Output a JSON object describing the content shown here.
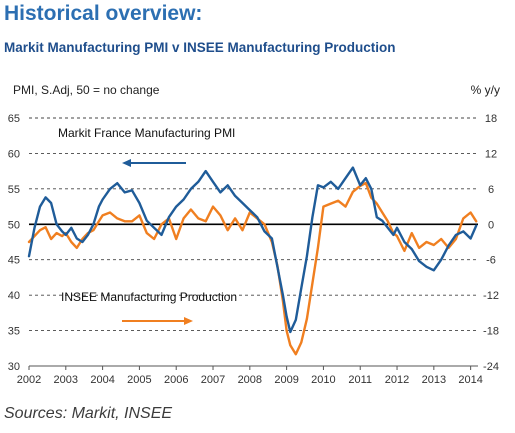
{
  "header": {
    "title": "Historical overview:",
    "subtitle": "Markit Manufacturing PMI v INSEE Manufacturing Production"
  },
  "footer": {
    "source": "Sources: Markit, INSEE"
  },
  "chart_data": {
    "type": "line",
    "left_axis_label": "PMI, S.Adj, 50 = no change",
    "right_axis_label": "% y/y",
    "left_ylim": [
      30,
      65
    ],
    "left_ticks": [
      30,
      35,
      40,
      45,
      50,
      55,
      60,
      65
    ],
    "right_ylim": [
      -24,
      18
    ],
    "right_ticks": [
      -24,
      -18,
      -12,
      -6,
      0,
      6,
      12,
      18
    ],
    "xlim": [
      2002,
      2014.2
    ],
    "x_ticks": [
      "2002",
      "2003",
      "2004",
      "2005",
      "2006",
      "2007",
      "2008",
      "2009",
      "2010",
      "2011",
      "2012",
      "2013",
      "2014"
    ],
    "reference_line": 50,
    "grid": "horizontal dashed",
    "colors": {
      "pmi": "#1f5c99",
      "production": "#f07f20"
    },
    "annotations": {
      "pmi": "Markit France Manufacturing PMI",
      "production": "INSEE Manufacturing Production"
    },
    "series": [
      {
        "key": "pmi",
        "axis": "left",
        "x": [
          2002.0,
          2002.15,
          2002.3,
          2002.45,
          2002.6,
          2002.75,
          2002.9,
          2003.0,
          2003.15,
          2003.3,
          2003.45,
          2003.6,
          2003.75,
          2003.9,
          2004.0,
          2004.2,
          2004.4,
          2004.6,
          2004.8,
          2005.0,
          2005.2,
          2005.4,
          2005.6,
          2005.8,
          2006.0,
          2006.2,
          2006.4,
          2006.6,
          2006.8,
          2007.0,
          2007.2,
          2007.4,
          2007.6,
          2007.8,
          2008.0,
          2008.2,
          2008.4,
          2008.6,
          2008.75,
          2008.9,
          2009.0,
          2009.1,
          2009.25,
          2009.4,
          2009.55,
          2009.7,
          2009.85,
          2010.0,
          2010.2,
          2010.4,
          2010.6,
          2010.8,
          2011.0,
          2011.15,
          2011.3,
          2011.45,
          2011.6,
          2011.75,
          2011.9,
          2012.0,
          2012.2,
          2012.4,
          2012.6,
          2012.8,
          2013.0,
          2013.2,
          2013.4,
          2013.6,
          2013.8,
          2014.0,
          2014.15
        ],
        "values": [
          45.5,
          49.5,
          52.5,
          53.8,
          53.0,
          50.0,
          49.0,
          48.5,
          49.5,
          48.0,
          47.5,
          48.5,
          50.0,
          52.5,
          53.5,
          55.0,
          55.8,
          54.5,
          54.8,
          53.0,
          50.5,
          49.5,
          48.5,
          51.0,
          52.5,
          53.5,
          55.0,
          56.0,
          57.5,
          56.0,
          54.5,
          55.5,
          54.0,
          53.0,
          52.0,
          51.0,
          49.0,
          48.0,
          44.0,
          40.0,
          37.0,
          34.8,
          36.5,
          41.0,
          45.5,
          51.0,
          55.5,
          55.2,
          56.0,
          55.0,
          56.5,
          58.0,
          55.5,
          56.5,
          55.0,
          51.0,
          50.5,
          49.5,
          48.5,
          49.5,
          47.5,
          46.5,
          44.8,
          44.0,
          43.5,
          45.0,
          47.0,
          48.5,
          49.0,
          48.0,
          49.8
        ]
      },
      {
        "key": "production",
        "axis": "right",
        "x": [
          2002.0,
          2002.15,
          2002.3,
          2002.45,
          2002.6,
          2002.75,
          2002.9,
          2003.0,
          2003.15,
          2003.3,
          2003.45,
          2003.6,
          2003.75,
          2003.9,
          2004.0,
          2004.2,
          2004.4,
          2004.6,
          2004.8,
          2005.0,
          2005.2,
          2005.4,
          2005.6,
          2005.8,
          2006.0,
          2006.2,
          2006.4,
          2006.6,
          2006.8,
          2007.0,
          2007.2,
          2007.4,
          2007.6,
          2007.8,
          2008.0,
          2008.2,
          2008.4,
          2008.6,
          2008.75,
          2008.9,
          2009.0,
          2009.1,
          2009.25,
          2009.4,
          2009.55,
          2009.7,
          2009.85,
          2010.0,
          2010.2,
          2010.4,
          2010.6,
          2010.8,
          2011.0,
          2011.15,
          2011.3,
          2011.45,
          2011.6,
          2011.75,
          2011.9,
          2012.0,
          2012.2,
          2012.4,
          2012.6,
          2012.8,
          2013.0,
          2013.2,
          2013.4,
          2013.6,
          2013.8,
          2014.0,
          2014.15
        ],
        "values": [
          -3.0,
          -2.0,
          -1.0,
          -0.5,
          -2.5,
          -1.5,
          -2.0,
          -1.5,
          -3.0,
          -4.0,
          -2.5,
          -1.5,
          -1.0,
          0.5,
          1.5,
          2.0,
          1.0,
          0.5,
          0.5,
          1.5,
          -1.5,
          -2.5,
          0.0,
          1.0,
          -2.5,
          1.0,
          2.5,
          1.0,
          0.5,
          3.0,
          1.5,
          -1.0,
          1.0,
          -1.0,
          2.0,
          1.0,
          0.0,
          -3.0,
          -7.0,
          -13.0,
          -18.0,
          -20.5,
          -22.0,
          -20.0,
          -16.0,
          -10.0,
          -4.0,
          3.0,
          3.5,
          4.0,
          3.0,
          5.5,
          6.5,
          7.0,
          4.5,
          3.5,
          2.0,
          0.5,
          -1.5,
          -2.0,
          -4.5,
          -1.5,
          -4.0,
          -3.0,
          -3.5,
          -2.5,
          -4.0,
          -2.5,
          1.0,
          2.0,
          0.5
        ]
      }
    ]
  }
}
